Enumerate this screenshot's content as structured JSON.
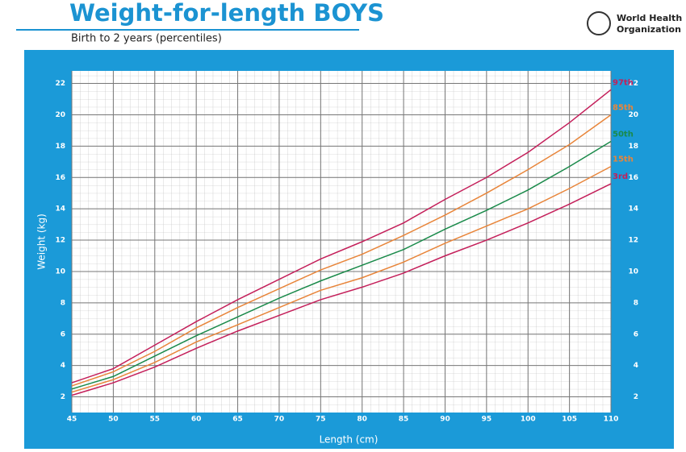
{
  "organization": [
    "World Health",
    "Organization"
  ],
  "chart_data": {
    "type": "line",
    "title": "Weight-for-length BOYS",
    "subtitle": "Birth to 2 years (percentiles)",
    "x_label": "Length (cm)",
    "y_label": "Weight (kg)",
    "x": [
      45,
      50,
      55,
      60,
      65,
      70,
      75,
      80,
      85,
      90,
      95,
      100,
      105,
      110
    ],
    "xlim": [
      45,
      110
    ],
    "xticks": [
      45,
      50,
      55,
      60,
      65,
      70,
      75,
      80,
      85,
      90,
      95,
      100,
      105,
      110
    ],
    "ylim": [
      1,
      22.8
    ],
    "yticks": [
      2,
      4,
      6,
      8,
      10,
      12,
      14,
      16,
      18,
      20,
      22
    ],
    "grid": true,
    "series": [
      {
        "name": "97th",
        "color": "#c41f5a",
        "values": [
          2.9,
          3.8,
          5.3,
          6.8,
          8.2,
          9.5,
          10.8,
          11.9,
          13.1,
          14.6,
          16.0,
          17.6,
          19.5,
          21.6
        ]
      },
      {
        "name": "85th",
        "color": "#e8853a",
        "values": [
          2.7,
          3.6,
          4.9,
          6.4,
          7.7,
          8.9,
          10.1,
          11.1,
          12.3,
          13.6,
          15.0,
          16.5,
          18.1,
          20.0
        ]
      },
      {
        "name": "50th",
        "color": "#1a8a4a",
        "values": [
          2.5,
          3.3,
          4.6,
          5.9,
          7.1,
          8.3,
          9.4,
          10.4,
          11.4,
          12.7,
          13.9,
          15.2,
          16.7,
          18.3
        ]
      },
      {
        "name": "15th",
        "color": "#e8853a",
        "values": [
          2.3,
          3.1,
          4.2,
          5.5,
          6.6,
          7.7,
          8.8,
          9.6,
          10.6,
          11.8,
          12.9,
          14.0,
          15.3,
          16.7
        ]
      },
      {
        "name": "3rd",
        "color": "#c41f5a",
        "values": [
          2.1,
          2.9,
          3.9,
          5.1,
          6.2,
          7.2,
          8.2,
          9.0,
          9.9,
          11.0,
          12.0,
          13.1,
          14.3,
          15.6
        ]
      }
    ]
  }
}
